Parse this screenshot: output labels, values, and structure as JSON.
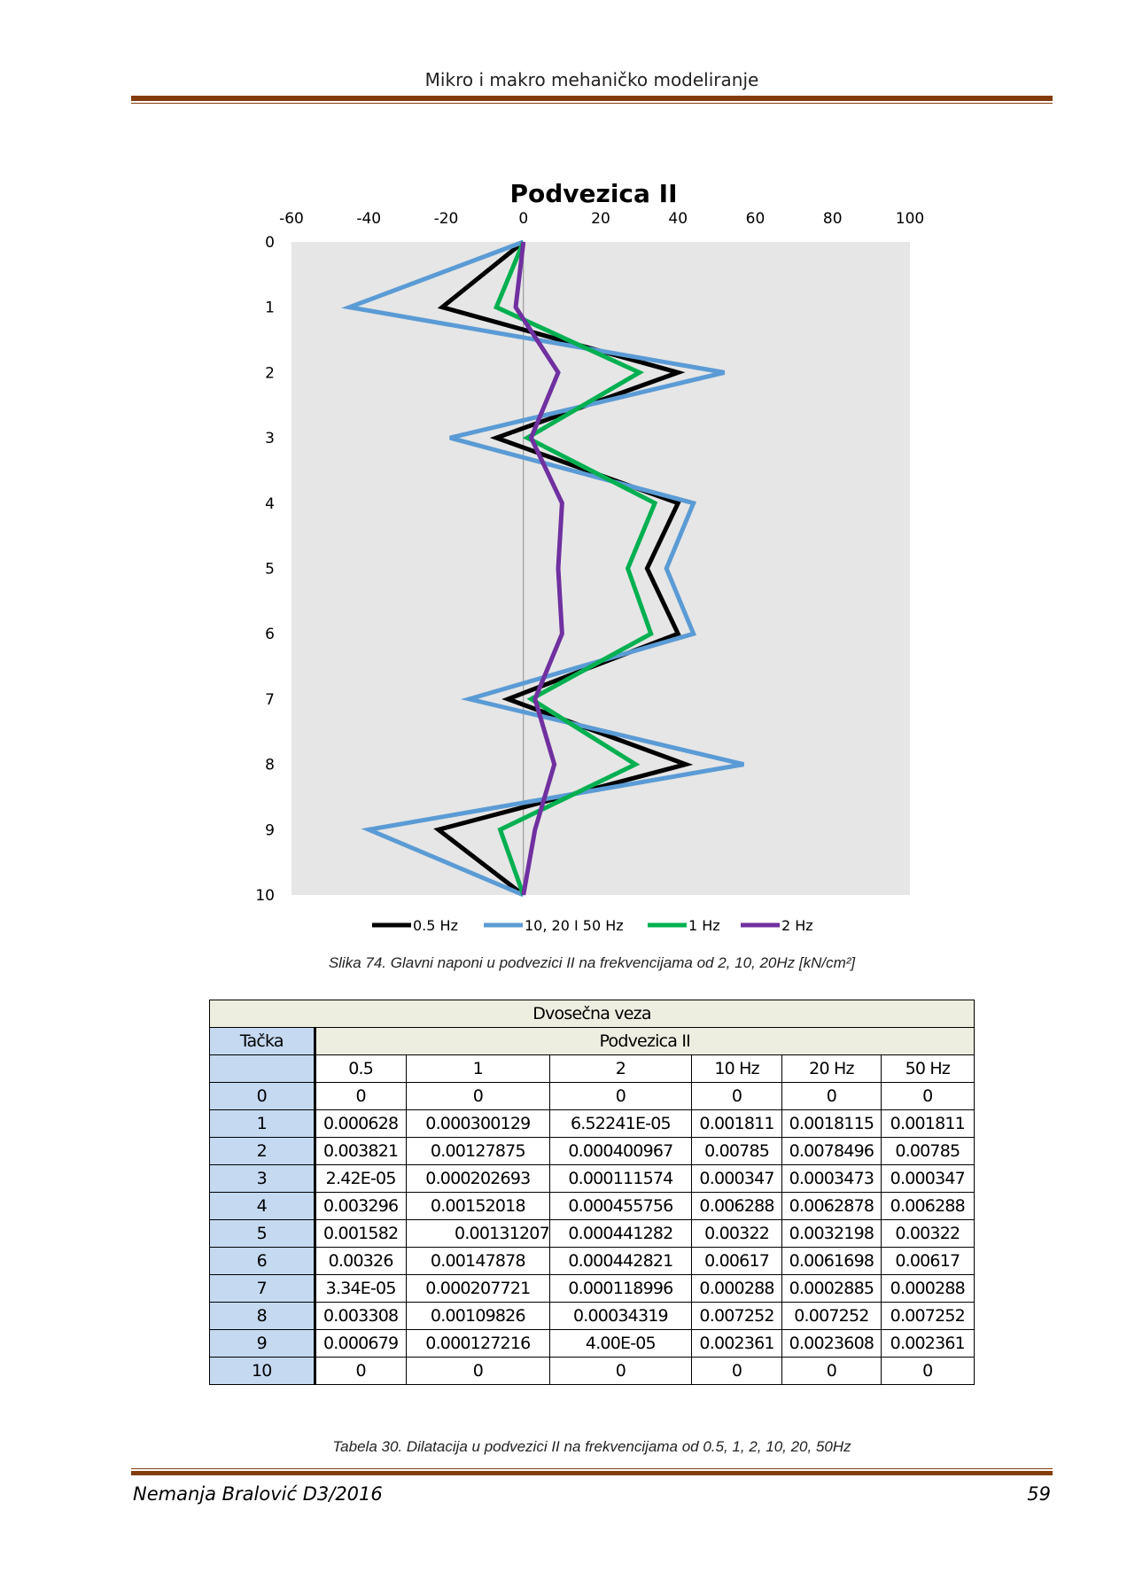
{
  "header": {
    "title": "Mikro i makro mehaničko modeliranje"
  },
  "chart_data": {
    "type": "line",
    "title": "Podvezica II",
    "orientation": "vertical-profile",
    "x_axis": {
      "position": "top",
      "range": [
        -60,
        100
      ],
      "ticks": [
        -60,
        -40,
        -20,
        0,
        20,
        40,
        60,
        80,
        100
      ]
    },
    "y_axis": {
      "reversed": true,
      "range": [
        0,
        10
      ],
      "ticks": [
        0,
        1,
        2,
        3,
        4,
        5,
        6,
        7,
        8,
        9,
        10
      ]
    },
    "grid": false,
    "legend": "bottom",
    "series": [
      {
        "name": "0.5 Hz",
        "color": "#000000",
        "points": [
          [
            0,
            0
          ],
          [
            -21,
            1
          ],
          [
            40,
            2
          ],
          [
            -7,
            3
          ],
          [
            40,
            4
          ],
          [
            32,
            5
          ],
          [
            40,
            6
          ],
          [
            -4,
            7
          ],
          [
            42,
            8
          ],
          [
            -22,
            9
          ],
          [
            0,
            10
          ]
        ]
      },
      {
        "name": "10, 20 I 50 Hz",
        "color": "#5b9bd5",
        "points": [
          [
            0,
            0
          ],
          [
            -45,
            1
          ],
          [
            52,
            2
          ],
          [
            -19,
            3
          ],
          [
            44,
            4
          ],
          [
            37,
            5
          ],
          [
            44,
            6
          ],
          [
            -14,
            7
          ],
          [
            57,
            8
          ],
          [
            -40,
            9
          ],
          [
            0,
            10
          ]
        ]
      },
      {
        "name": "1 Hz",
        "color": "#00b050",
        "points": [
          [
            0,
            0
          ],
          [
            -7,
            1
          ],
          [
            30,
            2
          ],
          [
            1,
            3
          ],
          [
            34,
            4
          ],
          [
            27,
            5
          ],
          [
            33,
            6
          ],
          [
            2,
            7
          ],
          [
            29,
            8
          ],
          [
            -6,
            9
          ],
          [
            0,
            10
          ]
        ]
      },
      {
        "name": "2 Hz",
        "color": "#7030a0",
        "points": [
          [
            0,
            0
          ],
          [
            -2,
            1
          ],
          [
            9,
            2
          ],
          [
            2,
            3
          ],
          [
            10,
            4
          ],
          [
            9,
            5
          ],
          [
            10,
            6
          ],
          [
            3,
            7
          ],
          [
            8,
            8
          ],
          [
            3,
            9
          ],
          [
            0,
            10
          ]
        ]
      }
    ]
  },
  "captions": {
    "figure": "Slika 74. Glavni naponi u podvezici II na frekvencijama od 2, 10, 20Hz  [kN/cm²]",
    "table": "Tabela 30. Dilatacija u podvezici II na frekvencijama od 0.5, 1, 2, 10, 20, 50Hz"
  },
  "table": {
    "title": "Dvosečna veza",
    "col_tacka": "Tačka",
    "group": "Podvezica II",
    "columns": [
      "0.5",
      "1",
      "2",
      "10 Hz",
      "20 Hz",
      "50 Hz"
    ],
    "rows": [
      [
        "0",
        "0",
        "0",
        "0",
        "0",
        "0",
        "0"
      ],
      [
        "1",
        "0.000628",
        "0.000300129",
        "6.52241E-05",
        "0.001811",
        "0.0018115",
        "0.001811"
      ],
      [
        "2",
        "0.003821",
        "0.00127875",
        "0.000400967",
        "0.00785",
        "0.0078496",
        "0.00785"
      ],
      [
        "3",
        "2.42E-05",
        "0.000202693",
        "0.000111574",
        "0.000347",
        "0.0003473",
        "0.000347"
      ],
      [
        "4",
        "0.003296",
        "0.00152018",
        "0.000455756",
        "0.006288",
        "0.0062878",
        "0.006288"
      ],
      [
        "5",
        "0.001582",
        "0.00131207",
        "0.000441282",
        "0.00322",
        "0.0032198",
        "0.00322"
      ],
      [
        "6",
        "0.00326",
        "0.00147878",
        "0.000442821",
        "0.00617",
        "0.0061698",
        "0.00617"
      ],
      [
        "7",
        "3.34E-05",
        "0.000207721",
        "0.000118996",
        "0.000288",
        "0.0002885",
        "0.000288"
      ],
      [
        "8",
        "0.003308",
        "0.00109826",
        "0.00034319",
        "0.007252",
        "0.007252",
        "0.007252"
      ],
      [
        "9",
        "0.000679",
        "0.000127216",
        "4.00E-05",
        "0.002361",
        "0.0023608",
        "0.002361"
      ],
      [
        "10",
        "0",
        "0",
        "0",
        "0",
        "0",
        "0"
      ]
    ]
  },
  "footer": {
    "author": "Nemanja Bralović D3/2016",
    "page": "59"
  }
}
